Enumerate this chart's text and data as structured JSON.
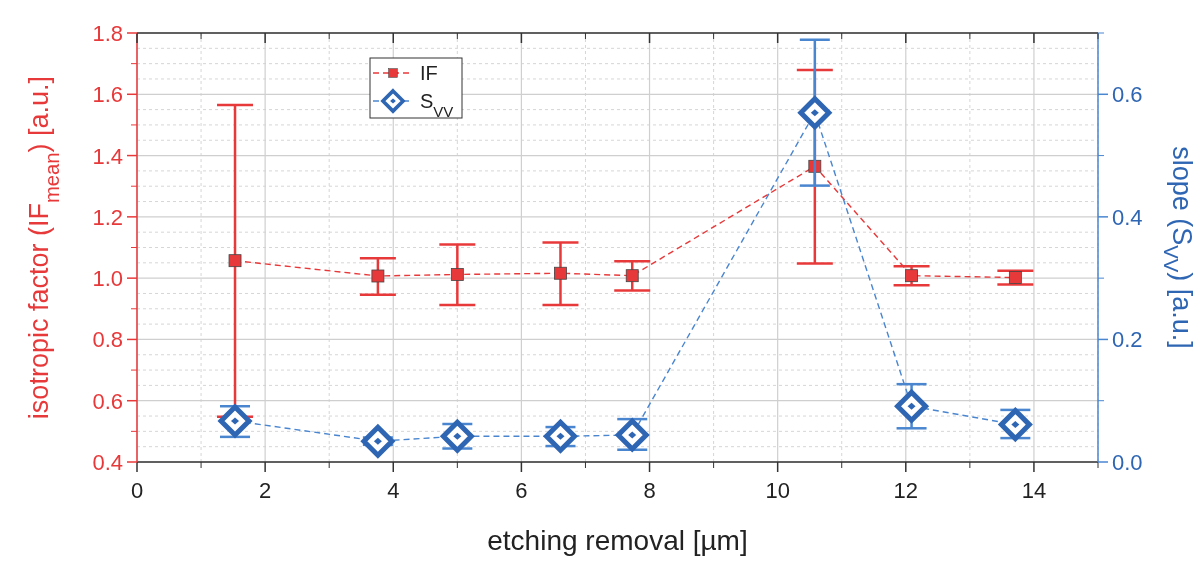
{
  "chart_data": {
    "type": "line",
    "xlabel": "etching removal [µm]",
    "ylabel": "isotropic factor (IF$_{mean}$) [a.u.]",
    "y2label": "slope (S$_{VV}$) [a.u.]",
    "xlim": [
      0,
      15
    ],
    "xticks": [
      0,
      2,
      4,
      6,
      8,
      10,
      12,
      14
    ],
    "ylim": [
      0.4,
      1.8
    ],
    "yticks": [
      {
        "value": 0.4,
        "label": "0.4"
      },
      {
        "value": 0.6,
        "label": "0.6"
      },
      {
        "value": 0.8,
        "label": "0.8"
      },
      {
        "value": 1.0,
        "label": "1.0"
      },
      {
        "value": 1.2,
        "label": "1.2"
      },
      {
        "value": 1.4,
        "label": "1.4"
      },
      {
        "value": 1.6,
        "label": "1.6"
      },
      {
        "value": 1.8,
        "label": "1.8"
      }
    ],
    "y2lim": [
      0,
      0.7
    ],
    "y2ticks": [
      {
        "value": 0,
        "label": "0.0"
      },
      {
        "value": 0.2,
        "label": "0.2"
      },
      {
        "value": 0.4,
        "label": "0.4"
      },
      {
        "value": 0.6,
        "label": "0.6"
      }
    ],
    "grid": true,
    "legend": "top left",
    "line_style": "dashed",
    "series": [
      {
        "name": "IF",
        "color": "#e8393a",
        "marker": "square",
        "x": [
          1.53,
          3.76,
          5.0,
          6.61,
          7.73,
          10.58,
          12.09,
          13.71
        ],
        "values": [
          1.057,
          1.007,
          1.012,
          1.016,
          1.008,
          1.365,
          1.008,
          1.002
        ],
        "errors": [
          [
            0.548,
            1.565
          ],
          [
            0.946,
            1.065
          ],
          [
            0.912,
            1.11
          ],
          [
            0.912,
            1.116
          ],
          [
            0.96,
            1.055
          ],
          [
            1.048,
            1.679
          ],
          [
            0.977,
            1.039
          ],
          [
            0.979,
            1.024
          ]
        ]
      },
      {
        "name": "S$_{VV}$",
        "color": "#2f66b3",
        "marker": "diamond",
        "axis": "y2",
        "x": [
          1.53,
          3.76,
          5.0,
          6.61,
          7.73,
          10.58,
          12.09,
          13.71
        ],
        "values": [
          0.067,
          0.034,
          0.042,
          0.042,
          0.044,
          0.57,
          0.091,
          0.061
        ],
        "errors": [
          [
            0.041,
            0.091
          ],
          [
            0.028,
            0.04
          ],
          [
            0.022,
            0.062
          ],
          [
            0.026,
            0.057
          ],
          [
            0.02,
            0.07
          ],
          [
            0.451,
            0.689
          ],
          [
            0.055,
            0.127
          ],
          [
            0.039,
            0.085
          ]
        ]
      }
    ]
  }
}
